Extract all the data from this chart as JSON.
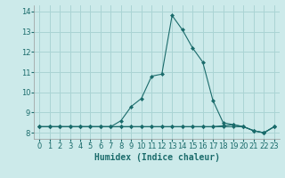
{
  "title": "",
  "xlabel": "Humidex (Indice chaleur)",
  "background_color": "#cceaea",
  "line_color": "#1a6b6b",
  "grid_color": "#aad4d4",
  "x_values": [
    0,
    1,
    2,
    3,
    4,
    5,
    6,
    7,
    8,
    9,
    10,
    11,
    12,
    13,
    14,
    15,
    16,
    17,
    18,
    19,
    20,
    21,
    22,
    23
  ],
  "series": [
    [
      8.3,
      8.3,
      8.3,
      8.3,
      8.3,
      8.3,
      8.3,
      8.3,
      8.3,
      8.3,
      8.3,
      8.3,
      8.3,
      8.3,
      8.3,
      8.3,
      8.3,
      8.3,
      8.35,
      8.4,
      8.3,
      8.1,
      8.0,
      8.3
    ],
    [
      8.3,
      8.3,
      8.3,
      8.3,
      8.3,
      8.3,
      8.3,
      8.3,
      8.6,
      9.3,
      9.7,
      10.8,
      10.9,
      13.8,
      13.1,
      12.2,
      11.5,
      9.6,
      8.5,
      8.4,
      8.3,
      8.1,
      8.0,
      8.3
    ],
    [
      8.3,
      8.3,
      8.3,
      8.3,
      8.3,
      8.3,
      8.3,
      8.3,
      8.3,
      8.3,
      8.3,
      8.3,
      8.3,
      8.3,
      8.3,
      8.3,
      8.3,
      8.3,
      8.3,
      8.3,
      8.3,
      8.1,
      8.0,
      8.3
    ]
  ],
  "ylim": [
    7.7,
    14.3
  ],
  "xlim": [
    -0.5,
    23.5
  ],
  "yticks": [
    8,
    9,
    10,
    11,
    12,
    13,
    14
  ],
  "xticks": [
    0,
    1,
    2,
    3,
    4,
    5,
    6,
    7,
    8,
    9,
    10,
    11,
    12,
    13,
    14,
    15,
    16,
    17,
    18,
    19,
    20,
    21,
    22,
    23
  ],
  "tick_fontsize": 6,
  "xlabel_fontsize": 7
}
